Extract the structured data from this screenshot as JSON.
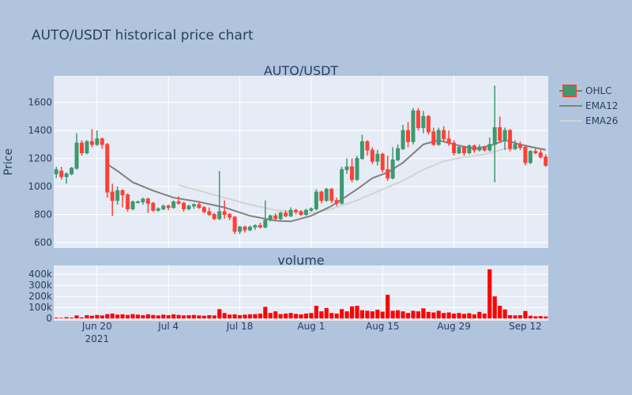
{
  "colors": {
    "page_bg": "#b0c4de",
    "plot_bg": "#e5ecf6",
    "grid": "#ffffff",
    "text": "#2a3f5f",
    "up": "#3d9970",
    "down": "#ff4136",
    "ema12": "#808080",
    "ema26": "#d3d3d3",
    "volume": "#ff0000"
  },
  "chart_data": [
    {
      "type": "candlestick",
      "title": "AUTO/USDT historical price chart",
      "subtitle": "AUTO/USDT",
      "ylabel": "Price",
      "ylim": [
        560,
        1790
      ],
      "yticks": [
        600,
        800,
        1000,
        1200,
        1400,
        1600
      ],
      "xrange": [
        "2021-06-12",
        "2021-09-17"
      ],
      "xticks": [
        {
          "date": "2021-06-20",
          "label": "Jun 20",
          "sublabel": "2021"
        },
        {
          "date": "2021-07-04",
          "label": "Jul 4"
        },
        {
          "date": "2021-07-18",
          "label": "Jul 18"
        },
        {
          "date": "2021-08-01",
          "label": "Aug 1"
        },
        {
          "date": "2021-08-15",
          "label": "Aug 15"
        },
        {
          "date": "2021-08-29",
          "label": "Aug 29"
        },
        {
          "date": "2021-09-12",
          "label": "Sep 12"
        }
      ],
      "grid": true,
      "legend": {
        "position": "top-right",
        "items": [
          "OHLC",
          "EMA12",
          "EMA26"
        ]
      },
      "columns": [
        "date",
        "open",
        "high",
        "low",
        "close"
      ],
      "ohlc": [
        [
          "2021-06-12",
          1090,
          1140,
          1060,
          1120
        ],
        [
          "2021-06-13",
          1110,
          1140,
          1050,
          1070
        ],
        [
          "2021-06-14",
          1070,
          1100,
          1020,
          1090
        ],
        [
          "2021-06-15",
          1090,
          1140,
          1080,
          1130
        ],
        [
          "2021-06-16",
          1130,
          1380,
          1120,
          1310
        ],
        [
          "2021-06-17",
          1310,
          1330,
          1220,
          1240
        ],
        [
          "2021-06-18",
          1240,
          1330,
          1230,
          1320
        ],
        [
          "2021-06-19",
          1320,
          1410,
          1280,
          1300
        ],
        [
          "2021-06-20",
          1300,
          1400,
          1290,
          1340
        ],
        [
          "2021-06-21",
          1340,
          1350,
          1270,
          1300
        ],
        [
          "2021-06-22",
          1300,
          1310,
          920,
          960
        ],
        [
          "2021-06-23",
          960,
          1020,
          790,
          900
        ],
        [
          "2021-06-24",
          900,
          1000,
          870,
          970
        ],
        [
          "2021-06-25",
          970,
          980,
          850,
          940
        ],
        [
          "2021-06-26",
          940,
          950,
          820,
          840
        ],
        [
          "2021-06-27",
          840,
          900,
          830,
          890
        ],
        [
          "2021-06-28",
          890,
          900,
          880,
          890
        ],
        [
          "2021-06-29",
          890,
          920,
          870,
          910
        ],
        [
          "2021-06-30",
          910,
          920,
          810,
          880
        ],
        [
          "2021-07-01",
          880,
          890,
          820,
          830
        ],
        [
          "2021-07-02",
          830,
          850,
          820,
          840
        ],
        [
          "2021-07-03",
          840,
          870,
          830,
          860
        ],
        [
          "2021-07-04",
          860,
          870,
          830,
          850
        ],
        [
          "2021-07-05",
          850,
          900,
          840,
          890
        ],
        [
          "2021-07-06",
          890,
          930,
          870,
          880
        ],
        [
          "2021-07-07",
          880,
          890,
          820,
          840
        ],
        [
          "2021-07-08",
          840,
          870,
          830,
          860
        ],
        [
          "2021-07-09",
          860,
          880,
          840,
          870
        ],
        [
          "2021-07-10",
          870,
          890,
          840,
          850
        ],
        [
          "2021-07-11",
          850,
          860,
          810,
          820
        ],
        [
          "2021-07-12",
          820,
          850,
          790,
          800
        ],
        [
          "2021-07-13",
          800,
          810,
          760,
          770
        ],
        [
          "2021-07-14",
          770,
          1110,
          760,
          820
        ],
        [
          "2021-07-15",
          820,
          900,
          770,
          800
        ],
        [
          "2021-07-16",
          800,
          810,
          760,
          780
        ],
        [
          "2021-07-17",
          780,
          790,
          660,
          680
        ],
        [
          "2021-07-18",
          680,
          720,
          660,
          710
        ],
        [
          "2021-07-19",
          710,
          720,
          670,
          690
        ],
        [
          "2021-07-20",
          690,
          720,
          680,
          710
        ],
        [
          "2021-07-21",
          710,
          730,
          690,
          720
        ],
        [
          "2021-07-22",
          720,
          740,
          700,
          710
        ],
        [
          "2021-07-23",
          710,
          900,
          700,
          760
        ],
        [
          "2021-07-24",
          760,
          800,
          750,
          790
        ],
        [
          "2021-07-25",
          790,
          810,
          760,
          770
        ],
        [
          "2021-07-26",
          770,
          820,
          760,
          810
        ],
        [
          "2021-07-27",
          810,
          830,
          780,
          790
        ],
        [
          "2021-07-28",
          790,
          850,
          780,
          830
        ],
        [
          "2021-07-29",
          830,
          840,
          800,
          820
        ],
        [
          "2021-07-30",
          820,
          830,
          790,
          800
        ],
        [
          "2021-07-31",
          800,
          840,
          790,
          830
        ],
        [
          "2021-08-01",
          830,
          850,
          820,
          840
        ],
        [
          "2021-08-02",
          840,
          980,
          830,
          960
        ],
        [
          "2021-08-03",
          960,
          970,
          880,
          900
        ],
        [
          "2021-08-04",
          900,
          990,
          890,
          980
        ],
        [
          "2021-08-05",
          980,
          990,
          880,
          900
        ],
        [
          "2021-08-06",
          900,
          920,
          860,
          880
        ],
        [
          "2021-08-07",
          880,
          1140,
          870,
          1120
        ],
        [
          "2021-08-08",
          1120,
          1200,
          1090,
          1140
        ],
        [
          "2021-08-09",
          1140,
          1200,
          1030,
          1050
        ],
        [
          "2021-08-10",
          1050,
          1220,
          1040,
          1200
        ],
        [
          "2021-08-11",
          1200,
          1370,
          1190,
          1320
        ],
        [
          "2021-08-12",
          1320,
          1330,
          1220,
          1260
        ],
        [
          "2021-08-13",
          1260,
          1280,
          1160,
          1180
        ],
        [
          "2021-08-14",
          1180,
          1260,
          1150,
          1230
        ],
        [
          "2021-08-15",
          1230,
          1240,
          1100,
          1120
        ],
        [
          "2021-08-16",
          1120,
          1220,
          1040,
          1060
        ],
        [
          "2021-08-17",
          1060,
          1280,
          1050,
          1190
        ],
        [
          "2021-08-18",
          1190,
          1300,
          1180,
          1270
        ],
        [
          "2021-08-19",
          1270,
          1440,
          1260,
          1400
        ],
        [
          "2021-08-20",
          1400,
          1460,
          1280,
          1320
        ],
        [
          "2021-08-21",
          1320,
          1560,
          1300,
          1540
        ],
        [
          "2021-08-22",
          1540,
          1560,
          1400,
          1420
        ],
        [
          "2021-08-23",
          1420,
          1540,
          1380,
          1500
        ],
        [
          "2021-08-24",
          1500,
          1510,
          1370,
          1390
        ],
        [
          "2021-08-25",
          1390,
          1420,
          1290,
          1300
        ],
        [
          "2021-08-26",
          1300,
          1420,
          1290,
          1400
        ],
        [
          "2021-08-27",
          1400,
          1430,
          1320,
          1340
        ],
        [
          "2021-08-28",
          1340,
          1400,
          1290,
          1310
        ],
        [
          "2021-08-29",
          1310,
          1330,
          1220,
          1240
        ],
        [
          "2021-08-30",
          1240,
          1290,
          1230,
          1280
        ],
        [
          "2021-08-31",
          1280,
          1290,
          1220,
          1240
        ],
        [
          "2021-09-01",
          1240,
          1300,
          1230,
          1290
        ],
        [
          "2021-09-02",
          1290,
          1300,
          1240,
          1260
        ],
        [
          "2021-09-03",
          1260,
          1300,
          1250,
          1280
        ],
        [
          "2021-09-04",
          1280,
          1290,
          1250,
          1260
        ],
        [
          "2021-09-05",
          1260,
          1350,
          1250,
          1300
        ],
        [
          "2021-09-06",
          1300,
          1720,
          1030,
          1420
        ],
        [
          "2021-09-07",
          1420,
          1500,
          1310,
          1330
        ],
        [
          "2021-09-08",
          1330,
          1420,
          1260,
          1400
        ],
        [
          "2021-09-09",
          1400,
          1410,
          1250,
          1270
        ],
        [
          "2021-09-10",
          1270,
          1330,
          1260,
          1300
        ],
        [
          "2021-09-11",
          1300,
          1320,
          1260,
          1280
        ],
        [
          "2021-09-12",
          1280,
          1290,
          1150,
          1170
        ],
        [
          "2021-09-13",
          1170,
          1260,
          1160,
          1250
        ],
        [
          "2021-09-14",
          1250,
          1270,
          1230,
          1240
        ],
        [
          "2021-09-15",
          1240,
          1260,
          1200,
          1210
        ],
        [
          "2021-09-16",
          1210,
          1230,
          1140,
          1150
        ]
      ],
      "ema12": [
        [
          "2021-06-22",
          1160
        ],
        [
          "2021-06-24",
          1110
        ],
        [
          "2021-06-27",
          1030
        ],
        [
          "2021-07-01",
          970
        ],
        [
          "2021-07-05",
          920
        ],
        [
          "2021-07-10",
          890
        ],
        [
          "2021-07-15",
          850
        ],
        [
          "2021-07-20",
          790
        ],
        [
          "2021-07-25",
          755
        ],
        [
          "2021-07-28",
          750
        ],
        [
          "2021-08-01",
          790
        ],
        [
          "2021-08-05",
          860
        ],
        [
          "2021-08-10",
          980
        ],
        [
          "2021-08-13",
          1060
        ],
        [
          "2021-08-16",
          1100
        ],
        [
          "2021-08-19",
          1170
        ],
        [
          "2021-08-23",
          1300
        ],
        [
          "2021-08-26",
          1330
        ],
        [
          "2021-08-29",
          1300
        ],
        [
          "2021-09-02",
          1270
        ],
        [
          "2021-09-05",
          1290
        ],
        [
          "2021-09-08",
          1330
        ],
        [
          "2021-09-11",
          1300
        ],
        [
          "2021-09-16",
          1260
        ]
      ],
      "ema26": [
        [
          "2021-07-06",
          1010
        ],
        [
          "2021-07-10",
          970
        ],
        [
          "2021-07-15",
          920
        ],
        [
          "2021-07-20",
          870
        ],
        [
          "2021-07-25",
          830
        ],
        [
          "2021-08-01",
          810
        ],
        [
          "2021-08-05",
          840
        ],
        [
          "2021-08-10",
          900
        ],
        [
          "2021-08-15",
          980
        ],
        [
          "2021-08-19",
          1040
        ],
        [
          "2021-08-23",
          1120
        ],
        [
          "2021-08-27",
          1180
        ],
        [
          "2021-08-31",
          1210
        ],
        [
          "2021-09-04",
          1230
        ],
        [
          "2021-09-08",
          1270
        ],
        [
          "2021-09-12",
          1280
        ],
        [
          "2021-09-16",
          1270
        ]
      ]
    },
    {
      "type": "bar",
      "title": "volume",
      "ylim": [
        -20000,
        480000
      ],
      "yticks": [
        {
          "value": 0,
          "label": "0"
        },
        {
          "value": 100000,
          "label": "100k"
        },
        {
          "value": 200000,
          "label": "200k"
        },
        {
          "value": 300000,
          "label": "300k"
        },
        {
          "value": 400000,
          "label": "400k"
        }
      ],
      "values": [
        8000,
        6000,
        12000,
        8000,
        28000,
        10000,
        30000,
        25000,
        32000,
        28000,
        40000,
        45000,
        35000,
        38000,
        32000,
        40000,
        35000,
        30000,
        38000,
        32000,
        28000,
        35000,
        30000,
        38000,
        32000,
        28000,
        30000,
        32000,
        28000,
        25000,
        30000,
        28000,
        85000,
        50000,
        35000,
        38000,
        30000,
        35000,
        38000,
        40000,
        45000,
        105000,
        50000,
        65000,
        40000,
        45000,
        50000,
        42000,
        38000,
        45000,
        50000,
        115000,
        65000,
        95000,
        50000,
        45000,
        85000,
        65000,
        110000,
        115000,
        75000,
        70000,
        65000,
        80000,
        62000,
        215000,
        70000,
        75000,
        65000,
        50000,
        70000,
        65000,
        92000,
        60000,
        55000,
        70000,
        50000,
        55000,
        45000,
        50000,
        42000,
        48000,
        38000,
        60000,
        45000,
        445000,
        200000,
        115000,
        82000,
        30000,
        28000,
        30000,
        68000,
        25000,
        20000,
        22000,
        18000
      ]
    }
  ]
}
